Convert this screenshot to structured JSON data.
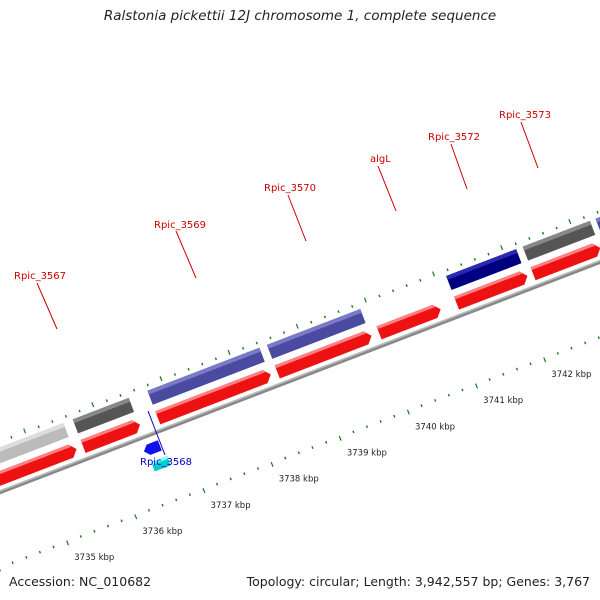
{
  "title": "Ralstonia pickettii 12J chromosome 1, complete sequence",
  "footer": {
    "accession": "Accession: NC_010682",
    "summary": "Topology: circular; Length: 3,942,557 bp; Genes: 3,767"
  },
  "colors": {
    "forward_cds": "#ff1a1a",
    "gene_dark_gray": "#555555",
    "gene_light_gray": "#bbbbbb",
    "gene_slate_blue": "#4a4aa0",
    "gene_navy": "#000080",
    "gene_blue": "#1111ee",
    "gene_cyan": "#00cccc",
    "backbone": "#888888",
    "tick_green": "#1a7a1a",
    "label_red": "#cc0000",
    "label_blue": "#0000cc"
  },
  "scale_labels": [
    "3735 kbp",
    "3736 kbp",
    "3737 kbp",
    "3738 kbp",
    "3739 kbp",
    "3740 kbp",
    "3741 kbp",
    "3742 kbp"
  ],
  "gene_labels": [
    {
      "name": "Rpic_3567",
      "color": "red"
    },
    {
      "name": "Rpic_3569",
      "color": "red"
    },
    {
      "name": "Rpic_3570",
      "color": "red"
    },
    {
      "name": "algL",
      "color": "red"
    },
    {
      "name": "Rpic_3572",
      "color": "red"
    },
    {
      "name": "Rpic_3573",
      "color": "red"
    },
    {
      "name": "Rpic_3568",
      "color": "blue"
    }
  ]
}
